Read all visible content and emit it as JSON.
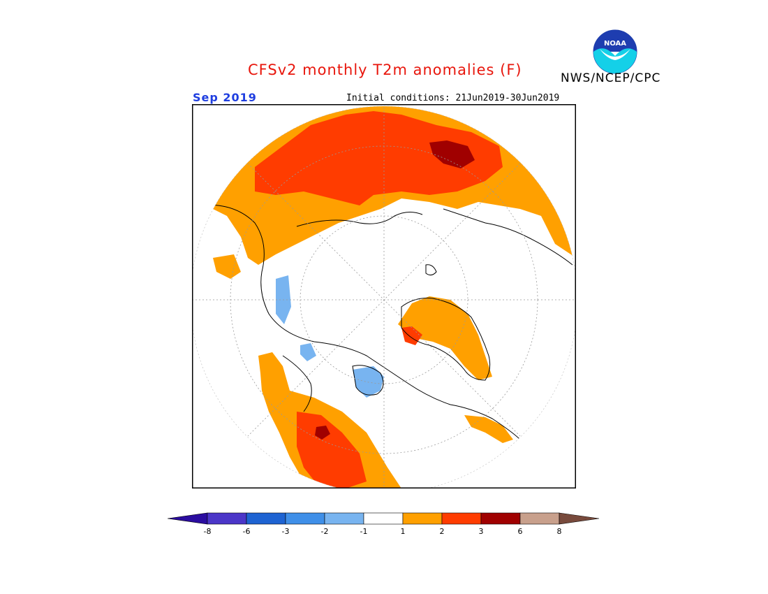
{
  "header": {
    "title": "CFSv2 monthly T2m anomalies (F)",
    "agency": "NWS/NCEP/CPC",
    "logo_text": "NOAA",
    "month": "Sep 2019",
    "initial_conditions": "Initial conditions: 21Jun2019-30Jun2019"
  },
  "map": {
    "projection": "north polar stereographic",
    "variable": "2m temperature anomaly",
    "units": "F"
  },
  "colorbar": {
    "labels": [
      "-8",
      "-6",
      "-3",
      "-2",
      "-1",
      "1",
      "2",
      "3",
      "6",
      "8"
    ],
    "colors": {
      "lt_-8": "#2b0da0",
      "-8_-6": "#4b36c8",
      "-6_-3": "#1e63d2",
      "-3_-2": "#3f8fe8",
      "-2_-1": "#78b4f0",
      "-1_1": "#ffffff",
      "1_2": "#ffa000",
      "2_3": "#ff3c00",
      "3_6": "#a00000",
      "6_8": "#c8a08c",
      "gt_8": "#784a3c"
    }
  }
}
